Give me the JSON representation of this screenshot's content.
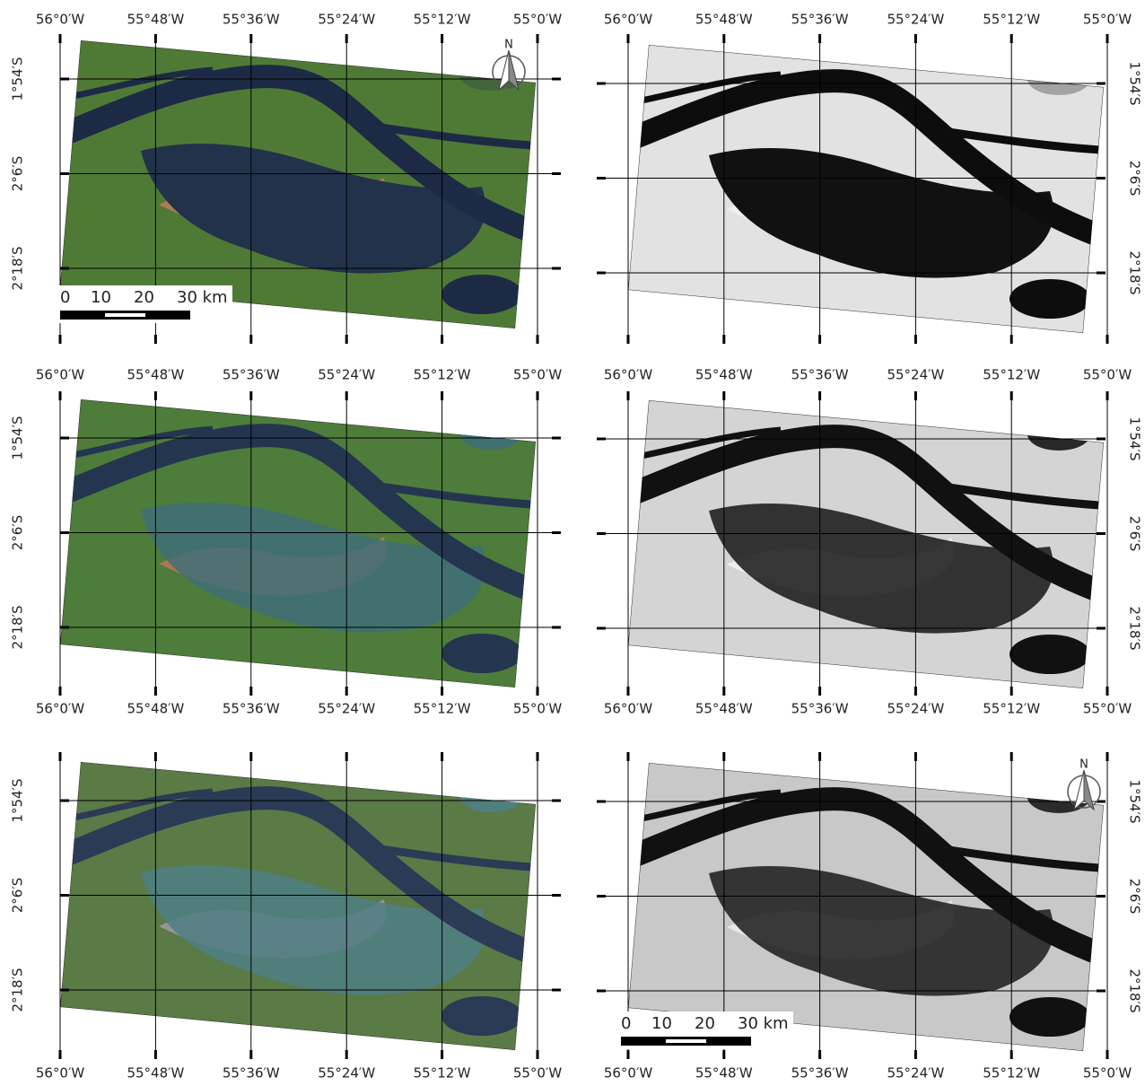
{
  "longitude_labels": [
    "56°0′W",
    "55°48′W",
    "55°36′W",
    "55°24′W",
    "55°12′W",
    "55°0′W"
  ],
  "latitude_labels": [
    "1°54′S",
    "2°6′S",
    "2°18′S"
  ],
  "scale_bar_labels": [
    "0",
    "10",
    "20",
    "30 km"
  ],
  "north_arrow_label": "N"
}
